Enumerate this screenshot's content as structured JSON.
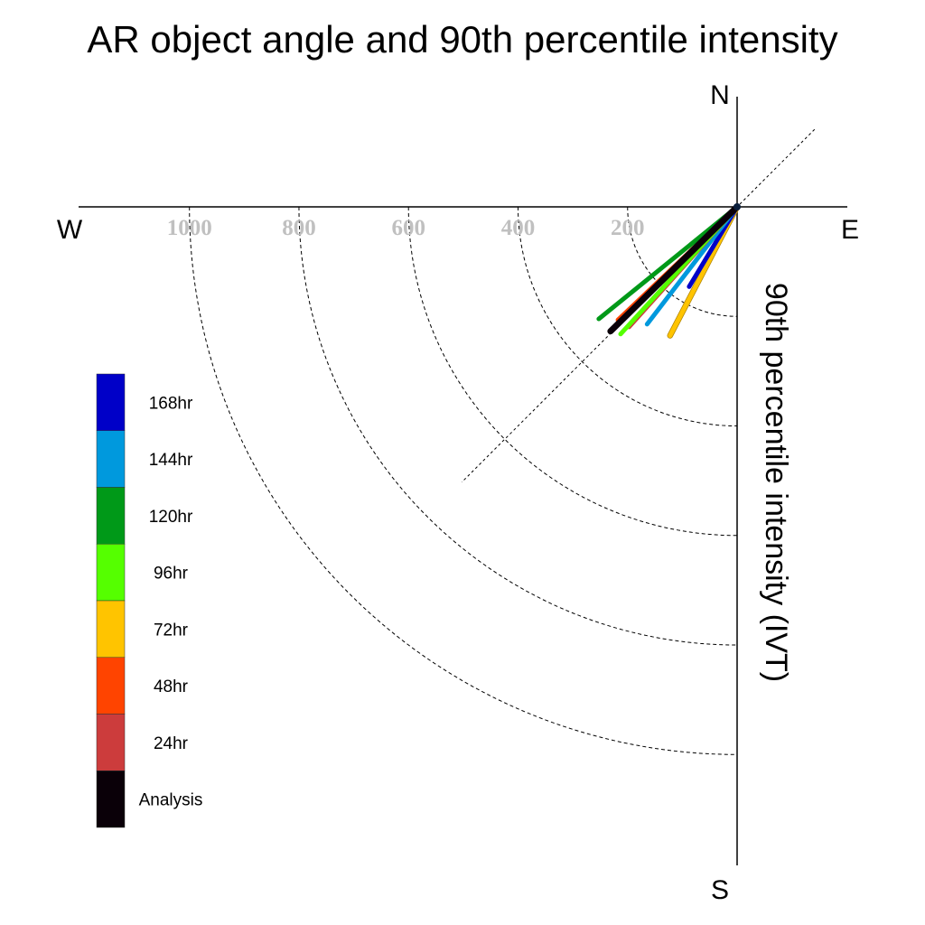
{
  "chart_data": {
    "type": "polar-line",
    "title": "AR object angle and 90th percentile intensity",
    "radial_axis_label": "90th percentile intensity (IVT)",
    "compass": {
      "north": "N",
      "south": "S",
      "east": "E",
      "west": "W"
    },
    "radial_ticks": [
      200,
      400,
      600,
      800,
      1000
    ],
    "radial_tick_labels": [
      "200",
      "400",
      "600",
      "800",
      "1000"
    ],
    "rmax": 1100,
    "angle_reference": "0 = North, clockwise, degrees",
    "series": [
      {
        "name": "Analysis",
        "color": "#0a0008",
        "angle": 225.5,
        "magnitude": 324,
        "stroke": 7
      },
      {
        "name": "24hr",
        "color": "#cc3c3c",
        "angle": 222.0,
        "magnitude": 295,
        "stroke": 5
      },
      {
        "name": "48hr",
        "color": "#ff4400",
        "angle": 226.5,
        "magnitude": 300,
        "stroke": 5
      },
      {
        "name": "72hr",
        "color": "#ffc400",
        "angle": 207.5,
        "magnitude": 265,
        "stroke": 5
      },
      {
        "name": "96hr",
        "color": "#55ff00",
        "angle": 222.5,
        "magnitude": 315,
        "stroke": 5
      },
      {
        "name": "120hr",
        "color": "#009918",
        "angle": 231.0,
        "magnitude": 325,
        "stroke": 5
      },
      {
        "name": "144hr",
        "color": "#0099dd",
        "angle": 217.5,
        "magnitude": 270,
        "stroke": 5
      },
      {
        "name": "168hr",
        "color": "#0000c8",
        "angle": 211.0,
        "magnitude": 170,
        "stroke": 5
      }
    ],
    "legend": [
      {
        "label": "168hr",
        "color": "#0000c8"
      },
      {
        "label": "144hr",
        "color": "#0099dd"
      },
      {
        "label": "120hr",
        "color": "#009918"
      },
      {
        "label": "96hr",
        "color": "#55ff00"
      },
      {
        "label": "72hr",
        "color": "#ffc400"
      },
      {
        "label": "48hr",
        "color": "#ff4400"
      },
      {
        "label": "24hr",
        "color": "#cc3c3c"
      },
      {
        "label": "Analysis",
        "color": "#0a0008"
      }
    ],
    "legend_placement": "left",
    "grid": true
  }
}
